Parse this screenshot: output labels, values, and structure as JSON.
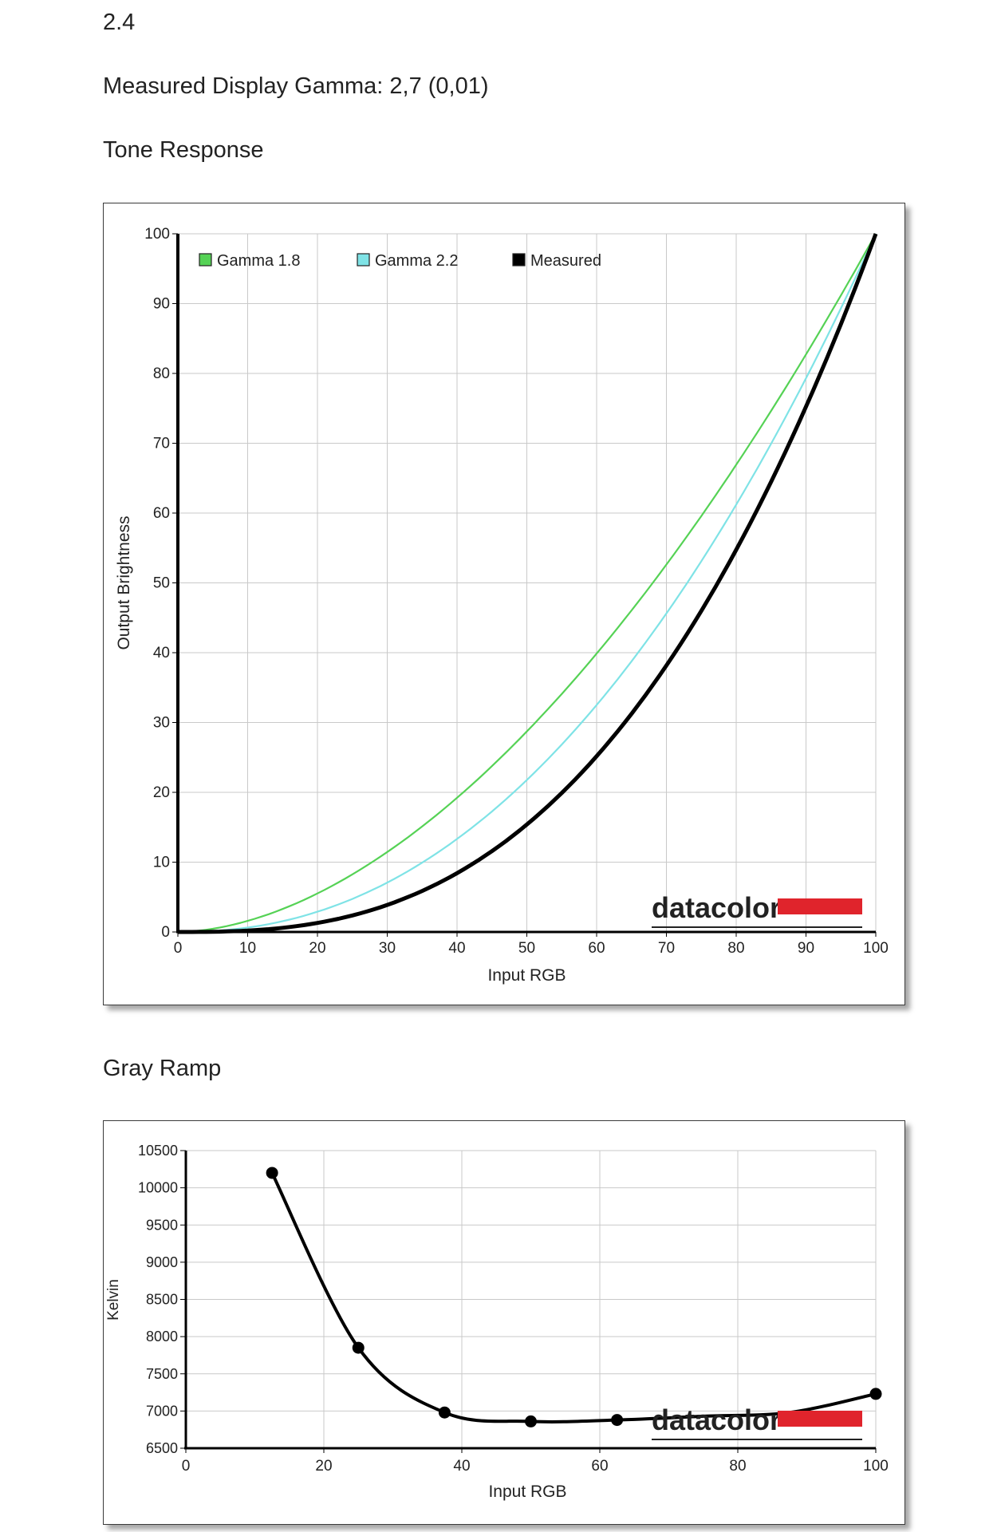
{
  "page": {
    "version_text": "2.4",
    "gamma_text": "Measured Display Gamma: 2,7 (0,01)",
    "tone_title": "Tone Response",
    "gray_title": "Gray Ramp"
  },
  "colors": {
    "gamma18": "#55d255",
    "gamma22": "#7fe3e6",
    "measured": "#000000",
    "grid": "#c9c9c9",
    "brand_red": "#e0242c"
  },
  "chart_data": [
    {
      "type": "line",
      "xlabel": "Input RGB",
      "ylabel": "Output Brightness",
      "xlim": [
        0,
        100
      ],
      "ylim": [
        0,
        100
      ],
      "xticks": [
        0,
        10,
        20,
        30,
        40,
        50,
        60,
        70,
        80,
        90,
        100
      ],
      "yticks": [
        0,
        10,
        20,
        30,
        40,
        50,
        60,
        70,
        80,
        90,
        100
      ],
      "grid": true,
      "legend": "top-left",
      "logo": "datacolor",
      "series": [
        {
          "name": "Gamma 1.8",
          "color": "#55d255",
          "gamma": 1.8,
          "x": [
            0,
            10,
            20,
            30,
            40,
            50,
            60,
            70,
            80,
            90,
            100
          ],
          "y": [
            0,
            1.6,
            5.5,
            11.5,
            19.2,
            28.7,
            39.9,
            52.6,
            66.9,
            82.7,
            100
          ]
        },
        {
          "name": "Gamma 2.2",
          "color": "#7fe3e6",
          "gamma": 2.2,
          "x": [
            0,
            10,
            20,
            30,
            40,
            50,
            60,
            70,
            80,
            90,
            100
          ],
          "y": [
            0,
            0.6,
            2.9,
            7.1,
            13.3,
            21.8,
            32.5,
            45.6,
            61.2,
            79.3,
            100
          ]
        },
        {
          "name": "Measured",
          "color": "#000000",
          "gamma": 2.7,
          "x": [
            0,
            10,
            20,
            30,
            40,
            50,
            60,
            70,
            80,
            90,
            100
          ],
          "y": [
            0,
            0.2,
            1.3,
            3.9,
            8.4,
            15.4,
            25.2,
            38.2,
            54.7,
            75.2,
            100
          ]
        }
      ]
    },
    {
      "type": "line",
      "xlabel": "Input RGB",
      "ylabel": "Kelvin",
      "xlim": [
        0,
        100
      ],
      "ylim": [
        6500,
        10500
      ],
      "xticks": [
        0,
        20,
        40,
        60,
        80,
        100
      ],
      "yticks": [
        6500,
        7000,
        7500,
        8000,
        8500,
        9000,
        9500,
        10000,
        10500
      ],
      "grid": true,
      "logo": "datacolor",
      "series": [
        {
          "name": "",
          "color": "#000000",
          "x": [
            12.5,
            25,
            37.5,
            50,
            62.5,
            75,
            87.5,
            100
          ],
          "y": [
            10200,
            7850,
            6980,
            6860,
            6880,
            6930,
            6980,
            7230
          ],
          "markers": [
            true,
            true,
            true,
            true,
            true,
            false,
            false,
            true
          ]
        }
      ]
    }
  ]
}
